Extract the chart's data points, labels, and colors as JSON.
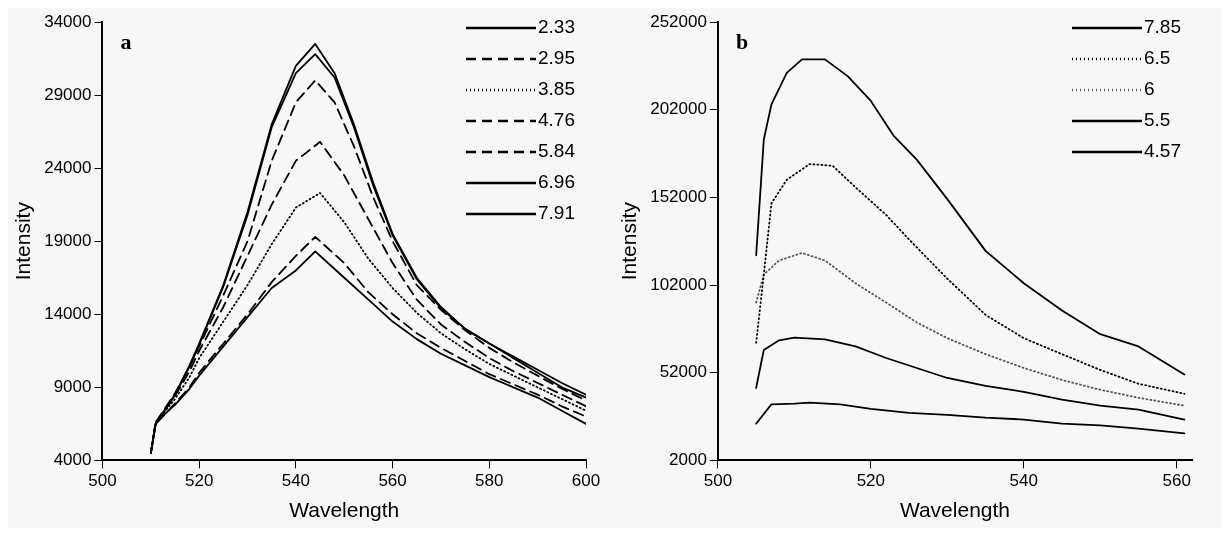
{
  "chart_data": [
    {
      "type": "line",
      "xlabel": "Wavelength",
      "ylabel": "Intensity",
      "annotations": [
        "a"
      ],
      "xlim": [
        500,
        600
      ],
      "xticks": [
        500,
        520,
        540,
        560,
        580,
        600
      ],
      "ylim": [
        4000,
        34000
      ],
      "yticks": [
        4000,
        9000,
        14000,
        19000,
        24000,
        29000,
        34000
      ],
      "grid": false,
      "legend": "top right",
      "marker": "none",
      "series": [
        {
          "name": "2.33",
          "color": "#000000",
          "line_style": "solid",
          "x": [
            510,
            511,
            513,
            515,
            518,
            520,
            525,
            530,
            535,
            540,
            544,
            550,
            555,
            560,
            565,
            570,
            575,
            580,
            585,
            590,
            595,
            600
          ],
          "values": [
            4500,
            6500,
            7200,
            7800,
            8900,
            9800,
            11800,
            13800,
            15800,
            17000,
            18300,
            16500,
            15000,
            13500,
            12300,
            11300,
            10500,
            9700,
            9000,
            8300,
            7400,
            6500
          ]
        },
        {
          "name": "2.95",
          "color": "#000000",
          "line_style": "dashed",
          "x": [
            510,
            511,
            513,
            515,
            518,
            520,
            525,
            530,
            535,
            540,
            544,
            550,
            555,
            560,
            565,
            570,
            575,
            580,
            585,
            590,
            595,
            600
          ],
          "values": [
            4500,
            6500,
            7200,
            7900,
            9000,
            10000,
            12000,
            14000,
            16200,
            18000,
            19300,
            17500,
            15500,
            14000,
            12700,
            11700,
            10800,
            9900,
            9200,
            8500,
            7700,
            7000
          ]
        },
        {
          "name": "3.85",
          "color": "#000000",
          "line_style": "dotted",
          "x": [
            510,
            511,
            513,
            515,
            518,
            520,
            525,
            530,
            535,
            540,
            545,
            550,
            555,
            560,
            565,
            570,
            575,
            580,
            585,
            590,
            595,
            600
          ],
          "values": [
            4500,
            6600,
            7400,
            8200,
            9700,
            11000,
            13500,
            16000,
            18800,
            21300,
            22300,
            20300,
            17800,
            15800,
            14100,
            12700,
            11600,
            10600,
            9800,
            9000,
            8200,
            7400
          ]
        },
        {
          "name": "4.76",
          "color": "#000000",
          "line_style": "dashed",
          "x": [
            510,
            511,
            513,
            515,
            518,
            520,
            525,
            530,
            535,
            540,
            545,
            550,
            555,
            560,
            565,
            570,
            575,
            580,
            585,
            590,
            595,
            600
          ],
          "values": [
            4500,
            6600,
            7500,
            8400,
            10100,
            11500,
            14500,
            18000,
            21500,
            24500,
            25800,
            23500,
            20500,
            17500,
            15000,
            13300,
            12100,
            11000,
            10100,
            9300,
            8500,
            7700
          ]
        },
        {
          "name": "5.84",
          "color": "#000000",
          "line_style": "dashed",
          "x": [
            510,
            511,
            513,
            515,
            518,
            520,
            525,
            530,
            535,
            540,
            544,
            548,
            552,
            556,
            560,
            565,
            570,
            575,
            580,
            585,
            590,
            595,
            600
          ],
          "values": [
            4500,
            6600,
            7600,
            8600,
            10400,
            11800,
            15300,
            19000,
            24500,
            28500,
            30000,
            28500,
            25500,
            22000,
            19000,
            16000,
            14300,
            12900,
            11700,
            10700,
            9800,
            8900,
            8100
          ]
        },
        {
          "name": "6.96",
          "color": "#000000",
          "line_style": "solid",
          "x": [
            510,
            511,
            513,
            515,
            518,
            520,
            525,
            530,
            535,
            540,
            544,
            548,
            552,
            556,
            560,
            565,
            570,
            575,
            580,
            585,
            590,
            595,
            600
          ],
          "values": [
            4500,
            6500,
            7500,
            8500,
            10400,
            11900,
            15900,
            20800,
            26800,
            30500,
            31800,
            30200,
            26800,
            22800,
            19400,
            16400,
            14400,
            13000,
            12000,
            11100,
            10200,
            9300,
            8500
          ]
        },
        {
          "name": "7.91",
          "color": "#000000",
          "line_style": "solid",
          "x": [
            510,
            511,
            513,
            515,
            518,
            520,
            525,
            530,
            535,
            540,
            544,
            548,
            552,
            556,
            560,
            565,
            570,
            575,
            580,
            585,
            590,
            595,
            600
          ],
          "values": [
            4500,
            6500,
            7500,
            8500,
            10500,
            12000,
            16000,
            21000,
            27000,
            31000,
            32500,
            30500,
            27000,
            23000,
            19500,
            16500,
            14500,
            13000,
            12000,
            11000,
            10000,
            9000,
            8300
          ]
        }
      ]
    },
    {
      "type": "line",
      "xlabel": "Wavelength",
      "ylabel": "Intensity",
      "annotations": [
        "b"
      ],
      "xlim": [
        500,
        562
      ],
      "xticks": [
        500,
        520,
        540,
        560
      ],
      "ylim": [
        2000,
        252000
      ],
      "yticks": [
        2000,
        52000,
        102000,
        152000,
        202000,
        252000
      ],
      "grid": false,
      "legend": "top right",
      "marker": "none",
      "series": [
        {
          "name": "7.85",
          "color": "#000000",
          "line_style": "solid",
          "x": [
            505,
            506,
            507,
            509,
            511,
            514,
            517,
            520,
            523,
            526,
            530,
            535,
            540,
            545,
            550,
            555,
            561
          ],
          "values": [
            119000,
            185000,
            205000,
            223000,
            230700,
            230700,
            221000,
            207000,
            187000,
            173500,
            151000,
            121500,
            103000,
            87500,
            74000,
            67000,
            51000
          ]
        },
        {
          "name": "6.5",
          "color": "#000000",
          "line_style": "dotted",
          "x": [
            505,
            506,
            507,
            509,
            512,
            515,
            518,
            522,
            525,
            530,
            535,
            540,
            545,
            550,
            555,
            561
          ],
          "values": [
            69000,
            108000,
            148600,
            162000,
            171000,
            170000,
            157700,
            142000,
            128000,
            105600,
            85000,
            71700,
            62600,
            53600,
            45700,
            40000
          ]
        },
        {
          "name": "6",
          "color": "#555555",
          "line_style": "dotted",
          "x": [
            505,
            506,
            508,
            511,
            514,
            518,
            522,
            526,
            530,
            535,
            540,
            545,
            550,
            555,
            561
          ],
          "values": [
            92000,
            108000,
            116000,
            120300,
            116000,
            103000,
            92000,
            80700,
            71700,
            62600,
            54700,
            47900,
            42300,
            37700,
            33200
          ]
        },
        {
          "name": "5.5",
          "color": "#000000",
          "line_style": "solid",
          "x": [
            505,
            506,
            508,
            510,
            514,
            518,
            522,
            526,
            530,
            535,
            540,
            545,
            550,
            555,
            561
          ],
          "values": [
            43400,
            65000,
            70500,
            72000,
            71000,
            67000,
            60400,
            54700,
            49000,
            44500,
            41100,
            36600,
            33200,
            31000,
            25300
          ]
        },
        {
          "name": "4.57",
          "color": "#000000",
          "line_style": "solid",
          "x": [
            505,
            507,
            510,
            512,
            516,
            520,
            525,
            530,
            535,
            540,
            545,
            550,
            555,
            561
          ],
          "values": [
            23000,
            34000,
            34400,
            35000,
            34000,
            31400,
            29100,
            28000,
            26400,
            25300,
            23000,
            22000,
            20100,
            17400
          ]
        }
      ]
    }
  ]
}
